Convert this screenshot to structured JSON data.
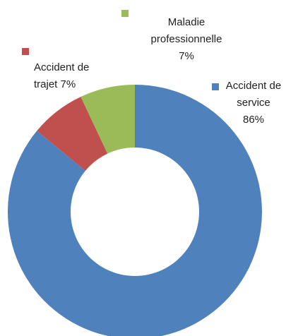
{
  "chart_data": {
    "type": "donut",
    "categories": [
      "Accident de service",
      "Accident de trajet",
      "Maladie professionnelle"
    ],
    "values": [
      86,
      7,
      7
    ],
    "value_labels": [
      "86%",
      "7%",
      "7%"
    ],
    "colors": [
      "#4f81bd",
      "#c0504d",
      "#9bbb59"
    ]
  }
}
